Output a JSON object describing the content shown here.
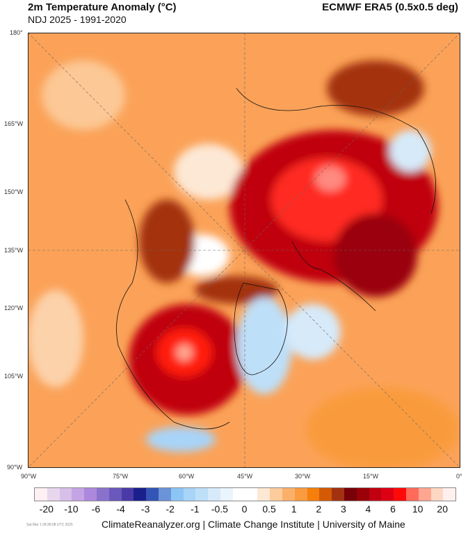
{
  "header": {
    "title": "2m Temperature Anomaly (°C)",
    "subtitle": "NDJ 2025 - 1991-2020",
    "source": "ECMWF ERA5 (0.5x0.5 deg)"
  },
  "map": {
    "left_labels": [
      "180°",
      "165°W",
      "150°W",
      "135°W",
      "120°W",
      "105°W",
      "90°W"
    ],
    "bottom_labels": [
      "90°W",
      "75°W",
      "60°W",
      "45°W",
      "30°W",
      "15°W",
      "0°"
    ]
  },
  "colorbar": {
    "labels": [
      "-20",
      "-10",
      "-6",
      "-4",
      "-3",
      "-2",
      "-1",
      "-0.5",
      "0",
      "0.5",
      "1",
      "2",
      "3",
      "4",
      "6",
      "10",
      "20"
    ],
    "colors": [
      "#fff0f3",
      "#e8d6ee",
      "#d8bfe8",
      "#c4a4e4",
      "#ad88dd",
      "#8a72cc",
      "#6a58bc",
      "#4a3aa8",
      "#1a1f8c",
      "#3355b5",
      "#6a93d8",
      "#8cc5f5",
      "#a8d4f8",
      "#bedff8",
      "#d6eafa",
      "#eaf4fd",
      "#ffffff",
      "#ffffff",
      "#fde8d5",
      "#fccc9c",
      "#fbb06a",
      "#f99b3e",
      "#f57f0a",
      "#d45a05",
      "#a33210",
      "#780008",
      "#9a0008",
      "#c00010",
      "#dd0015",
      "#ff0a0a",
      "#ff6a5a",
      "#ffa690",
      "#fdd7c2",
      "#fff0ee"
    ]
  },
  "footer": {
    "credit": "ClimateReanalyzer.org | Climate Change Institute | University of Maine",
    "timestamp": "Sat Mar  1 09:36:08 UTC 2025"
  }
}
